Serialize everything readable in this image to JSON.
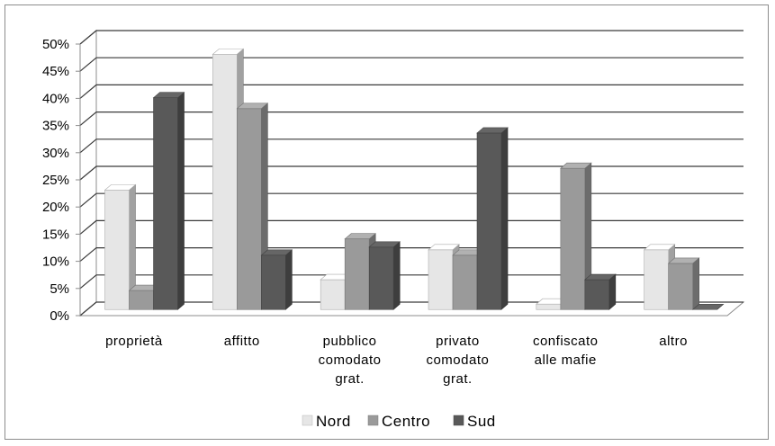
{
  "chart_data": {
    "type": "bar",
    "categories": [
      [
        "proprietà"
      ],
      [
        "affitto"
      ],
      [
        "pubblico",
        "comodato",
        "grat."
      ],
      [
        "privato",
        "comodato",
        "grat."
      ],
      [
        "confiscato",
        "alle mafie"
      ],
      [
        "altro"
      ]
    ],
    "series": [
      {
        "name": "Nord",
        "values": [
          22,
          47,
          5.5,
          11,
          1,
          11
        ],
        "color": "#e6e6e6"
      },
      {
        "name": "Centro",
        "values": [
          3.5,
          37,
          13,
          10,
          26,
          8.5
        ],
        "color": "#9a9a9a"
      },
      {
        "name": "Sud",
        "values": [
          39,
          10,
          11.5,
          32.5,
          5.5,
          0
        ],
        "color": "#595959"
      }
    ],
    "yticks": [
      "0%",
      "5%",
      "10%",
      "15%",
      "20%",
      "25%",
      "30%",
      "35%",
      "40%",
      "45%",
      "50%"
    ],
    "ylim": [
      0,
      50
    ],
    "grid": true,
    "legend_position": "bottom",
    "style": "3d-clustered-column"
  }
}
